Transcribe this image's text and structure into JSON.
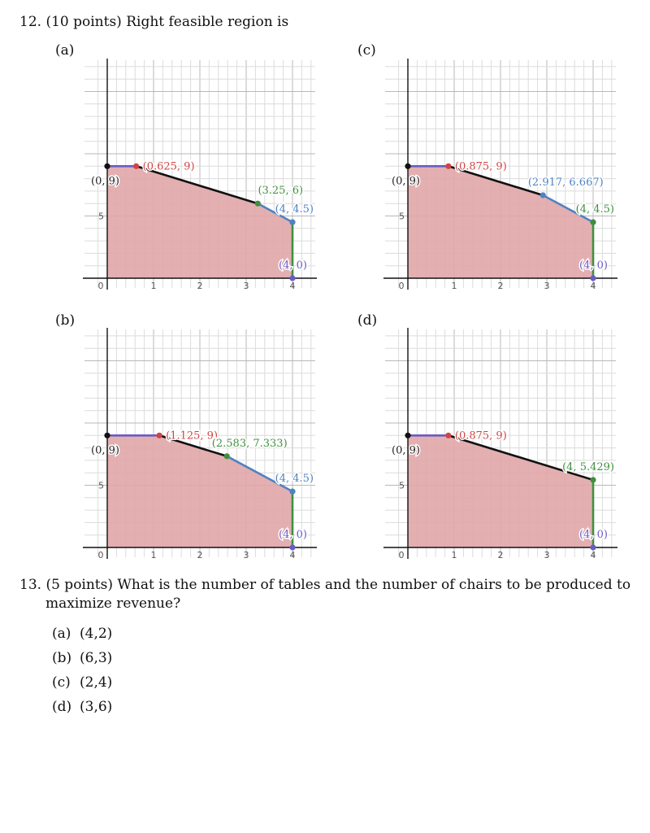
{
  "q12": {
    "number": "12.",
    "text": "(10 points) Right feasible region is"
  },
  "q13": {
    "number": "13.",
    "text_line1": "(5 points) What is the number of tables and the number of chairs to be produced to",
    "text_line2": "maximize revenue?",
    "choices": [
      {
        "label": "(a)",
        "value": "(4,2)"
      },
      {
        "label": "(b)",
        "value": "(6,3)"
      },
      {
        "label": "(c)",
        "value": "(2,4)"
      },
      {
        "label": "(d)",
        "value": "(3,6)"
      }
    ]
  },
  "colors": {
    "fill": "#e0a6a8",
    "red": "#cf4444",
    "green": "#3f8f3f",
    "blue": "#4f82c2",
    "purple": "#6a5cc7",
    "black": "#111111",
    "gray_pt": "#6e63c4"
  },
  "chart_data": [
    {
      "type": "area",
      "panel": "(a)",
      "xlim": [
        0,
        4
      ],
      "ylim": [
        0,
        9
      ],
      "x_ticks": [
        "0",
        "1",
        "2",
        "3",
        "4"
      ],
      "y_ticks": [
        "5"
      ],
      "points": [
        {
          "x": 0,
          "y": 9,
          "label": "(0, 9)",
          "color": "black"
        },
        {
          "x": 0.625,
          "y": 9,
          "label": "(0.625, 9)",
          "color": "red"
        },
        {
          "x": 3.25,
          "y": 6,
          "label": "(3.25, 6)",
          "color": "green"
        },
        {
          "x": 4,
          "y": 4.5,
          "label": "(4, 4.5)",
          "color": "blue"
        },
        {
          "x": 4,
          "y": 0,
          "label": "(4, 0)",
          "color": "purple"
        }
      ],
      "segments": [
        "purple",
        "black",
        "blue",
        "green"
      ]
    },
    {
      "type": "area",
      "panel": "(c)",
      "xlim": [
        0,
        4
      ],
      "ylim": [
        0,
        9
      ],
      "x_ticks": [
        "0",
        "1",
        "2",
        "3",
        "4"
      ],
      "y_ticks": [
        "5"
      ],
      "points": [
        {
          "x": 0,
          "y": 9,
          "label": "(0, 9)",
          "color": "black"
        },
        {
          "x": 0.875,
          "y": 9,
          "label": "(0.875, 9)",
          "color": "red"
        },
        {
          "x": 2.917,
          "y": 6.667,
          "label": "(2.917, 6.667)",
          "color": "blue"
        },
        {
          "x": 4,
          "y": 4.5,
          "label": "(4, 4.5)",
          "color": "green"
        },
        {
          "x": 4,
          "y": 0,
          "label": "(4, 0)",
          "color": "purple"
        }
      ],
      "segments": [
        "purple",
        "black",
        "blue",
        "green"
      ]
    },
    {
      "type": "area",
      "panel": "(b)",
      "xlim": [
        0,
        4
      ],
      "ylim": [
        0,
        9
      ],
      "x_ticks": [
        "0",
        "1",
        "2",
        "3",
        "4"
      ],
      "y_ticks": [
        "5"
      ],
      "points": [
        {
          "x": 0,
          "y": 9,
          "label": "(0, 9)",
          "color": "black"
        },
        {
          "x": 1.125,
          "y": 9,
          "label": "(1.125, 9)",
          "color": "red"
        },
        {
          "x": 2.583,
          "y": 7.333,
          "label": "(2.583, 7.333)",
          "color": "green"
        },
        {
          "x": 4,
          "y": 4.5,
          "label": "(4, 4.5)",
          "color": "blue"
        },
        {
          "x": 4,
          "y": 0,
          "label": "(4, 0)",
          "color": "purple"
        }
      ],
      "segments": [
        "purple",
        "black",
        "blue",
        "green"
      ]
    },
    {
      "type": "area",
      "panel": "(d)",
      "xlim": [
        0,
        4
      ],
      "ylim": [
        0,
        9
      ],
      "x_ticks": [
        "0",
        "1",
        "2",
        "3",
        "4"
      ],
      "y_ticks": [
        "5"
      ],
      "points": [
        {
          "x": 0,
          "y": 9,
          "label": "(0, 9)",
          "color": "black"
        },
        {
          "x": 0.875,
          "y": 9,
          "label": "(0.875, 9)",
          "color": "red"
        },
        {
          "x": 4,
          "y": 5.429,
          "label": "(4, 5.429)",
          "color": "green"
        },
        {
          "x": 4,
          "y": 0,
          "label": "(4, 0)",
          "color": "purple"
        }
      ],
      "segments": [
        "purple",
        "black",
        "green"
      ]
    }
  ]
}
